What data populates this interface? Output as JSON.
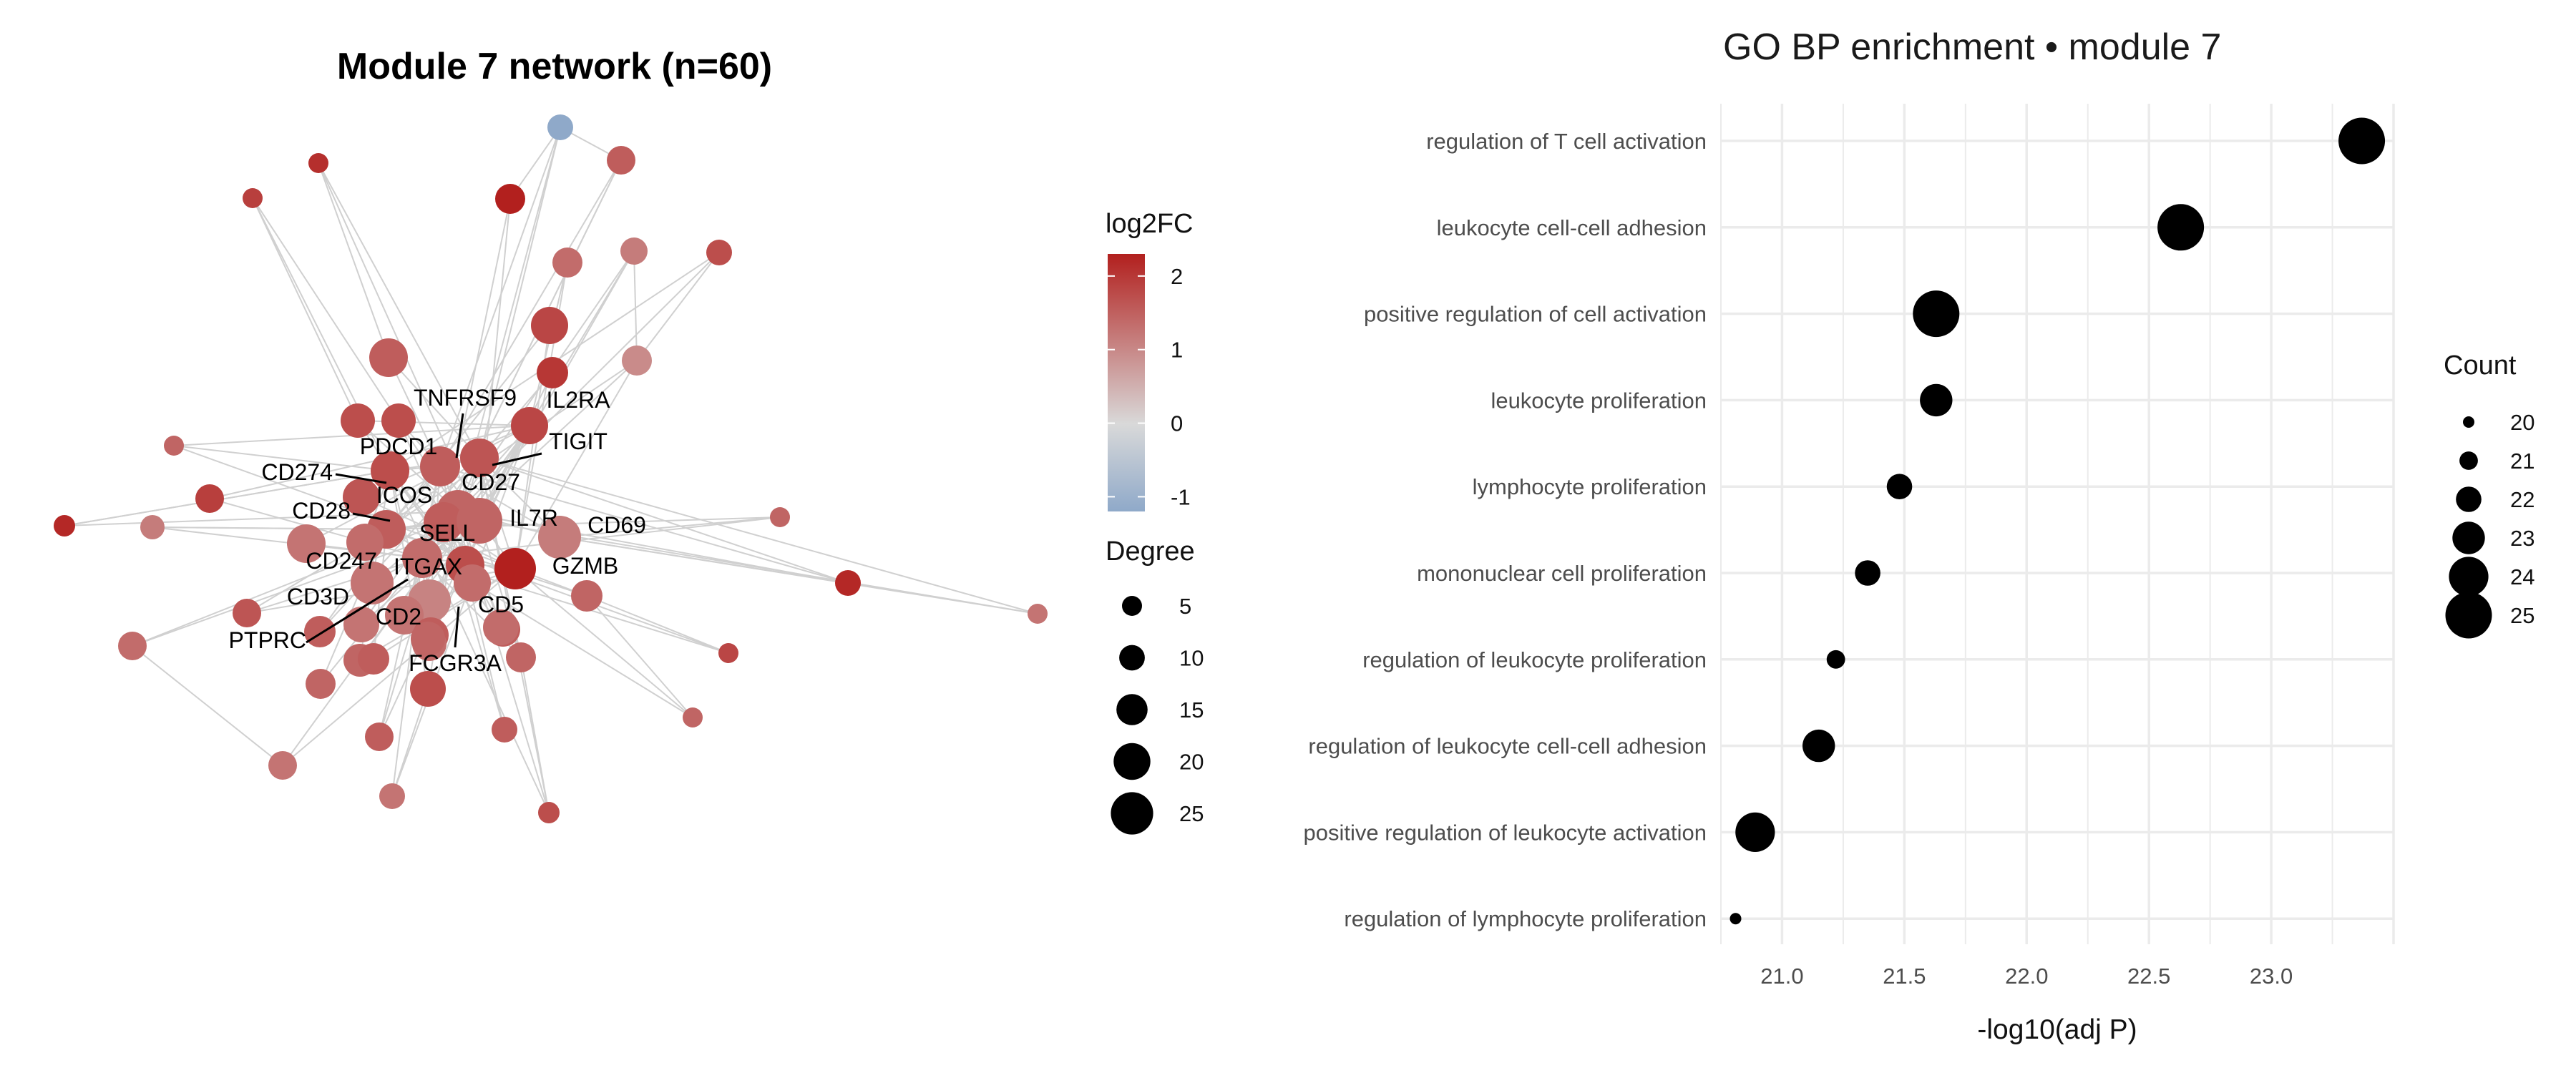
{
  "chart_data": [
    {
      "type": "network",
      "title": "Module 7 network (n=60)",
      "color_legend": {
        "title": "log2FC",
        "ticks": [
          "2",
          "1",
          "0",
          "-1"
        ],
        "range": [
          -1.2,
          2.3
        ],
        "colors": {
          "low": "#8fa9c9",
          "mid": "#d9d9d9",
          "high": "#b2201e"
        }
      },
      "size_legend": {
        "title": "Degree",
        "values": [
          5,
          10,
          15,
          20,
          25
        ],
        "labels": [
          "5",
          "10",
          "15",
          "20",
          "25"
        ]
      },
      "labeled_genes": [
        "TNFRSF9",
        "IL2RA",
        "PDCD1",
        "TIGIT",
        "CD274",
        "CD27",
        "ICOS",
        "CD28",
        "IL7R",
        "CD69",
        "SELL",
        "CD247",
        "ITGAX",
        "GZMB",
        "CD3D",
        "CD2",
        "CD5",
        "PTPRC",
        "FCGR3A"
      ]
    },
    {
      "type": "scatter",
      "title": "GO BP enrichment • module 7",
      "xlabel": "-log10(adj P)",
      "ylabel": "",
      "xlim": [
        20.75,
        23.5
      ],
      "xticks": [
        "21.0",
        "21.5",
        "22.0",
        "22.5",
        "23.0"
      ],
      "legend": {
        "title": "Count",
        "values": [
          20,
          21,
          22,
          23,
          24,
          25
        ],
        "labels": [
          "20",
          "21",
          "22",
          "23",
          "24",
          "25"
        ]
      },
      "terms": [
        {
          "term": "regulation of T cell activation",
          "x": 23.37,
          "count": 25
        },
        {
          "term": "leukocyte cell-cell adhesion",
          "x": 22.63,
          "count": 25
        },
        {
          "term": "positive regulation of cell activation",
          "x": 21.63,
          "count": 25
        },
        {
          "term": "leukocyte proliferation",
          "x": 21.63,
          "count": 23
        },
        {
          "term": "lymphocyte proliferation",
          "x": 21.48,
          "count": 22
        },
        {
          "term": "mononuclear cell proliferation",
          "x": 21.35,
          "count": 22
        },
        {
          "term": "regulation of leukocyte proliferation",
          "x": 21.22,
          "count": 21
        },
        {
          "term": "regulation of leukocyte cell-cell adhesion",
          "x": 21.15,
          "count": 23
        },
        {
          "term": "positive regulation of leukocyte activation",
          "x": 20.89,
          "count": 24
        },
        {
          "term": "regulation of lymphocyte proliferation",
          "x": 20.81,
          "count": 20
        }
      ]
    }
  ]
}
